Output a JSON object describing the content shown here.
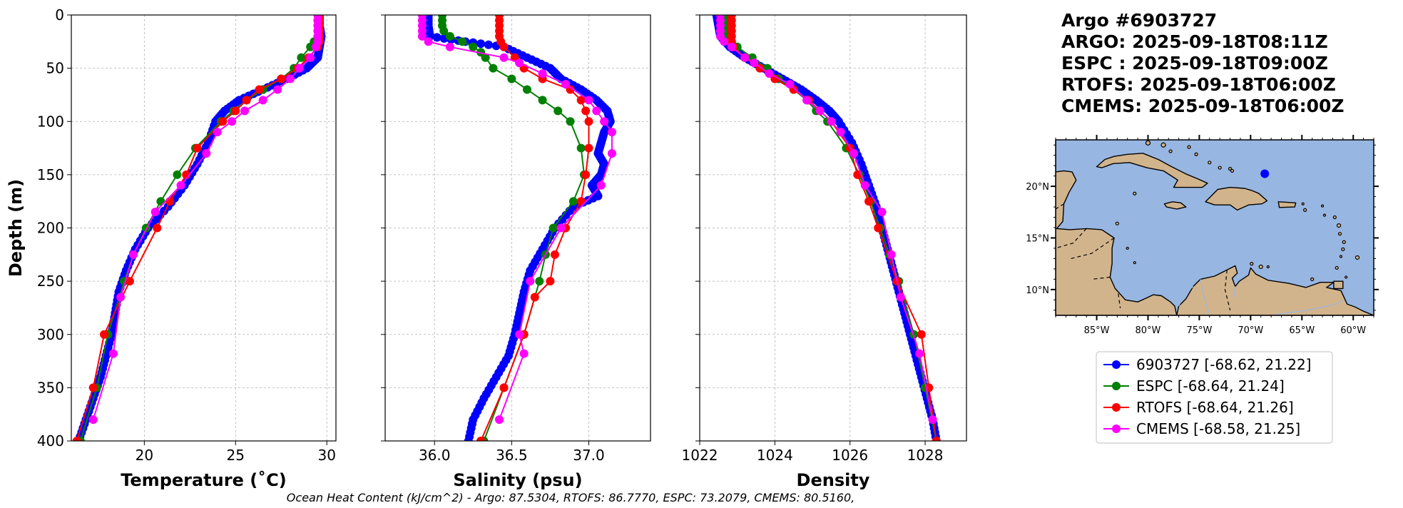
{
  "figure": {
    "title_lines": [
      "Argo #6903727",
      "ARGO: 2025-09-18T08:11Z",
      "ESPC : 2025-09-18T09:00Z",
      "RTOFS: 2025-09-18T06:00Z",
      "CMEMS: 2025-09-18T06:00Z"
    ],
    "footer": "Ocean Heat Content (kJ/cm^2) - Argo: 87.5304,  RTOFS: 86.7770,  ESPC: 73.2079,  CMEMS: 80.5160,"
  },
  "colors": {
    "argo": "#0000ff",
    "espc": "#008000",
    "rtofs": "#ff0000",
    "cmems": "#ff00ff",
    "ocean": "#97b6e1",
    "land": "#d2b48c",
    "grid": "#b0b0b0"
  },
  "chart_data": [
    {
      "type": "line",
      "title": "",
      "xlabel": "Temperature (˚C)",
      "ylabel": "Depth (m)",
      "xlim": [
        16,
        30.5
      ],
      "ylim": [
        400,
        0
      ],
      "xticks": [
        20,
        25,
        30
      ],
      "yticks": [
        0,
        50,
        100,
        150,
        200,
        250,
        300,
        350,
        400
      ],
      "grid": true,
      "series": [
        {
          "name": "6903727",
          "color_key": "argo",
          "dense": true,
          "depth": [
            0,
            10,
            20,
            30,
            40,
            50,
            60,
            70,
            80,
            90,
            100,
            120,
            140,
            160,
            180,
            200,
            220,
            240,
            260,
            280,
            300,
            320,
            340,
            360,
            380,
            400
          ],
          "values": [
            29.6,
            29.6,
            29.7,
            29.6,
            29.5,
            28.9,
            27.8,
            26.5,
            25.2,
            24.4,
            23.9,
            23.5,
            22.9,
            22.2,
            21.3,
            20.2,
            19.5,
            19.0,
            18.6,
            18.4,
            18.2,
            17.9,
            17.6,
            17.2,
            16.8,
            16.4
          ]
        },
        {
          "name": "ESPC",
          "color_key": "espc",
          "depth": [
            0,
            5,
            10,
            15,
            20,
            25,
            30,
            40,
            50,
            60,
            70,
            80,
            90,
            100,
            125,
            150,
            175,
            200,
            225,
            250,
            300,
            350,
            400
          ],
          "values": [
            29.5,
            29.5,
            29.5,
            29.5,
            29.5,
            29.3,
            29.1,
            28.6,
            28.2,
            27.5,
            26.5,
            25.6,
            24.9,
            24.2,
            22.8,
            21.8,
            20.9,
            20.1,
            19.4,
            18.9,
            18.0,
            17.4,
            16.5
          ]
        },
        {
          "name": "RTOFS",
          "color_key": "rtofs",
          "depth": [
            0,
            5,
            10,
            15,
            20,
            25,
            30,
            40,
            50,
            60,
            70,
            80,
            90,
            100,
            125,
            150,
            175,
            200,
            250,
            300,
            350,
            400
          ],
          "values": [
            29.6,
            29.6,
            29.6,
            29.6,
            29.6,
            29.6,
            29.5,
            29.0,
            28.4,
            27.5,
            26.3,
            25.6,
            25.0,
            24.3,
            22.9,
            22.3,
            21.4,
            20.7,
            19.2,
            17.8,
            17.2,
            16.3
          ]
        },
        {
          "name": "CMEMS",
          "color_key": "cmems",
          "depth": [
            0,
            5,
            10,
            15,
            20,
            25,
            30,
            40,
            50,
            60,
            70,
            80,
            90,
            100,
            110,
            130,
            160,
            185,
            225,
            265,
            318,
            380
          ],
          "values": [
            29.5,
            29.5,
            29.5,
            29.5,
            29.5,
            29.5,
            29.4,
            29.1,
            28.5,
            28.0,
            27.3,
            26.5,
            25.5,
            24.8,
            24.0,
            23.4,
            22.0,
            20.6,
            19.4,
            18.7,
            18.3,
            17.2
          ]
        }
      ]
    },
    {
      "type": "line",
      "title": "",
      "xlabel": "Salinity (psu)",
      "ylabel": "",
      "xlim": [
        35.68,
        37.4
      ],
      "ylim": [
        400,
        0
      ],
      "xticks": [
        36.0,
        36.5,
        37.0
      ],
      "yticks": [
        0,
        50,
        100,
        150,
        200,
        250,
        300,
        350,
        400
      ],
      "grid": true,
      "series": [
        {
          "name": "6903727",
          "color_key": "argo",
          "dense": true,
          "depth": [
            0,
            10,
            20,
            25,
            30,
            40,
            50,
            60,
            70,
            80,
            90,
            100,
            110,
            120,
            130,
            140,
            150,
            160,
            170,
            180,
            200,
            220,
            240,
            260,
            280,
            300,
            320,
            340,
            360,
            380,
            400
          ],
          "values": [
            35.96,
            35.96,
            35.97,
            36.2,
            36.45,
            36.6,
            36.75,
            36.82,
            36.95,
            37.05,
            37.12,
            37.14,
            37.1,
            37.08,
            37.06,
            37.1,
            37.08,
            37.02,
            37.06,
            36.9,
            36.78,
            36.7,
            36.62,
            36.58,
            36.55,
            36.52,
            36.48,
            36.4,
            36.32,
            36.25,
            36.22
          ]
        },
        {
          "name": "ESPC",
          "color_key": "espc",
          "depth": [
            0,
            5,
            10,
            15,
            20,
            25,
            30,
            35,
            40,
            50,
            60,
            70,
            80,
            90,
            100,
            125,
            150,
            175,
            200,
            225,
            250,
            300,
            350,
            400
          ],
          "values": [
            36.05,
            36.05,
            36.05,
            36.06,
            36.1,
            36.18,
            36.25,
            36.3,
            36.33,
            36.38,
            36.5,
            36.6,
            36.7,
            36.8,
            36.88,
            36.95,
            36.97,
            36.9,
            36.77,
            36.72,
            36.68,
            36.58,
            36.45,
            36.32
          ]
        },
        {
          "name": "RTOFS",
          "color_key": "rtofs",
          "depth": [
            0,
            5,
            10,
            15,
            20,
            25,
            30,
            40,
            50,
            60,
            70,
            80,
            90,
            100,
            125,
            150,
            175,
            200,
            225,
            250,
            265,
            300,
            350,
            400
          ],
          "values": [
            36.42,
            36.42,
            36.42,
            36.42,
            36.42,
            36.43,
            36.45,
            36.52,
            36.58,
            36.7,
            36.88,
            36.95,
            36.98,
            37.0,
            37.0,
            36.98,
            36.95,
            36.85,
            36.78,
            36.75,
            36.65,
            36.58,
            36.45,
            36.3
          ]
        },
        {
          "name": "CMEMS",
          "color_key": "cmems",
          "depth": [
            0,
            5,
            10,
            15,
            20,
            25,
            30,
            40,
            45,
            55,
            65,
            80,
            90,
            100,
            110,
            130,
            160,
            200,
            250,
            300,
            318,
            380
          ],
          "values": [
            35.92,
            35.92,
            35.92,
            35.92,
            35.92,
            35.96,
            36.1,
            36.45,
            36.55,
            36.7,
            36.85,
            37.0,
            37.05,
            37.1,
            37.15,
            37.15,
            37.08,
            36.82,
            36.62,
            36.55,
            36.58,
            36.42
          ]
        }
      ]
    },
    {
      "type": "line",
      "title": "",
      "xlabel": "Density",
      "ylabel": "",
      "xlim": [
        1022,
        1029.1
      ],
      "ylim": [
        400,
        0
      ],
      "xticks": [
        1022,
        1024,
        1026,
        1028
      ],
      "yticks": [
        0,
        50,
        100,
        150,
        200,
        250,
        300,
        350,
        400
      ],
      "grid": true,
      "series": [
        {
          "name": "6903727",
          "color_key": "argo",
          "dense": true,
          "depth": [
            0,
            10,
            20,
            30,
            40,
            50,
            60,
            70,
            80,
            90,
            100,
            120,
            140,
            160,
            180,
            200,
            220,
            240,
            260,
            280,
            300,
            320,
            340,
            360,
            380,
            400
          ],
          "values": [
            1022.45,
            1022.5,
            1022.55,
            1022.8,
            1023.2,
            1023.7,
            1024.2,
            1024.7,
            1025.1,
            1025.45,
            1025.7,
            1026.05,
            1026.3,
            1026.5,
            1026.7,
            1026.85,
            1027.0,
            1027.15,
            1027.3,
            1027.45,
            1027.6,
            1027.75,
            1027.9,
            1028.05,
            1028.2,
            1028.3
          ]
        },
        {
          "name": "ESPC",
          "color_key": "espc",
          "depth": [
            0,
            5,
            10,
            15,
            20,
            25,
            30,
            40,
            50,
            60,
            70,
            80,
            90,
            100,
            125,
            150,
            175,
            200,
            225,
            250,
            300,
            350,
            400
          ],
          "values": [
            1022.7,
            1022.7,
            1022.7,
            1022.72,
            1022.75,
            1022.85,
            1023.0,
            1023.4,
            1023.8,
            1024.1,
            1024.5,
            1024.85,
            1025.1,
            1025.4,
            1025.9,
            1026.25,
            1026.55,
            1026.8,
            1027.05,
            1027.3,
            1027.7,
            1028.0,
            1028.3
          ]
        },
        {
          "name": "RTOFS",
          "color_key": "rtofs",
          "depth": [
            0,
            5,
            10,
            15,
            20,
            25,
            30,
            40,
            50,
            60,
            70,
            80,
            90,
            100,
            125,
            150,
            175,
            200,
            250,
            300,
            350,
            400
          ],
          "values": [
            1022.85,
            1022.85,
            1022.85,
            1022.85,
            1022.85,
            1022.85,
            1022.9,
            1023.2,
            1023.6,
            1024.0,
            1024.5,
            1024.9,
            1025.2,
            1025.5,
            1026.0,
            1026.2,
            1026.5,
            1026.75,
            1027.25,
            1027.9,
            1028.1,
            1028.3
          ]
        },
        {
          "name": "CMEMS",
          "color_key": "cmems",
          "depth": [
            0,
            5,
            10,
            15,
            20,
            25,
            30,
            40,
            45,
            55,
            65,
            80,
            90,
            100,
            110,
            130,
            160,
            185,
            225,
            265,
            318,
            380
          ],
          "values": [
            1022.55,
            1022.55,
            1022.55,
            1022.55,
            1022.55,
            1022.65,
            1022.85,
            1023.2,
            1023.45,
            1023.85,
            1024.4,
            1024.85,
            1025.2,
            1025.5,
            1025.75,
            1026.1,
            1026.4,
            1026.85,
            1027.1,
            1027.35,
            1027.85,
            1028.2
          ]
        }
      ]
    },
    {
      "type": "map",
      "title": "",
      "lon_range": [
        -89,
        -58
      ],
      "lat_range": [
        7.5,
        24.5
      ],
      "xticks": [
        "85°W",
        "80°W",
        "75°W",
        "70°W",
        "65°W",
        "60°W"
      ],
      "xtick_lons": [
        -85,
        -80,
        -75,
        -70,
        -65,
        -60
      ],
      "yticks": [
        "20°N",
        "15°N",
        "10°N"
      ],
      "ytick_lats": [
        20,
        15,
        10
      ],
      "marker": {
        "lon": -68.62,
        "lat": 21.22,
        "color_key": "argo"
      }
    }
  ],
  "legend": {
    "entries": [
      {
        "label": "6903727 [-68.62, 21.22]",
        "color_key": "argo"
      },
      {
        "label": "ESPC [-68.64, 21.24]",
        "color_key": "espc"
      },
      {
        "label": "RTOFS [-68.64, 21.26]",
        "color_key": "rtofs"
      },
      {
        "label": "CMEMS [-68.58, 21.25]",
        "color_key": "cmems"
      }
    ]
  }
}
